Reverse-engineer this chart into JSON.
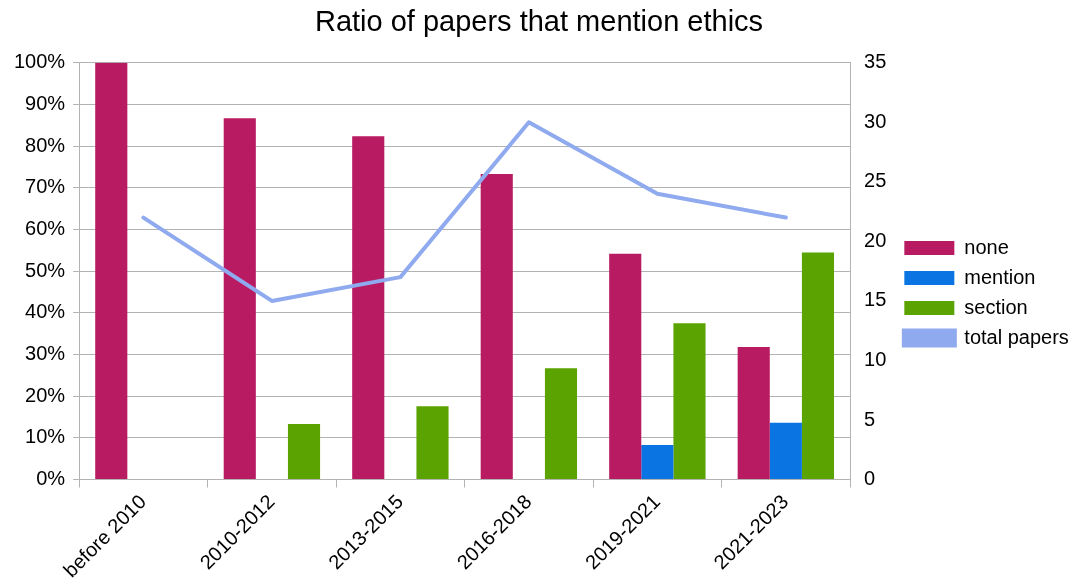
{
  "chart_data": {
    "type": "bar",
    "title": "Ratio of papers that mention ethics",
    "categories": [
      "before 2010",
      "2010-2012",
      "2013-2015",
      "2016-2018",
      "2019-2021",
      "2021-2023"
    ],
    "series": [
      {
        "name": "none",
        "color": "#b81b61",
        "values": [
          100,
          86.7,
          82.4,
          73.3,
          54.2,
          31.8
        ]
      },
      {
        "name": "mention",
        "color": "#0a74e3",
        "values": [
          0,
          0,
          0,
          0,
          8.3,
          13.6
        ]
      },
      {
        "name": "section",
        "color": "#5ba300",
        "values": [
          0,
          13.3,
          17.6,
          26.7,
          37.5,
          54.5
        ]
      },
      {
        "name": "total papers",
        "type": "line",
        "axis": "y2",
        "color": "#8faaee",
        "values": [
          22,
          15,
          17,
          30,
          24,
          22
        ]
      }
    ],
    "ylim": [
      0,
      100
    ],
    "yticks": [
      {
        "value": 0,
        "label": "0%"
      },
      {
        "value": 10,
        "label": "10%"
      },
      {
        "value": 20,
        "label": "20%"
      },
      {
        "value": 30,
        "label": "30%"
      },
      {
        "value": 40,
        "label": "40%"
      },
      {
        "value": 50,
        "label": "50%"
      },
      {
        "value": 60,
        "label": "60%"
      },
      {
        "value": 70,
        "label": "70%"
      },
      {
        "value": 80,
        "label": "80%"
      },
      {
        "value": 90,
        "label": "90%"
      },
      {
        "value": 100,
        "label": "100%"
      }
    ],
    "y2lim": [
      0,
      35
    ],
    "y2ticks": [
      0,
      5,
      10,
      15,
      20,
      25,
      30,
      35
    ],
    "grid": "y",
    "legend": "right",
    "marker": "none",
    "line_style": "solid"
  }
}
